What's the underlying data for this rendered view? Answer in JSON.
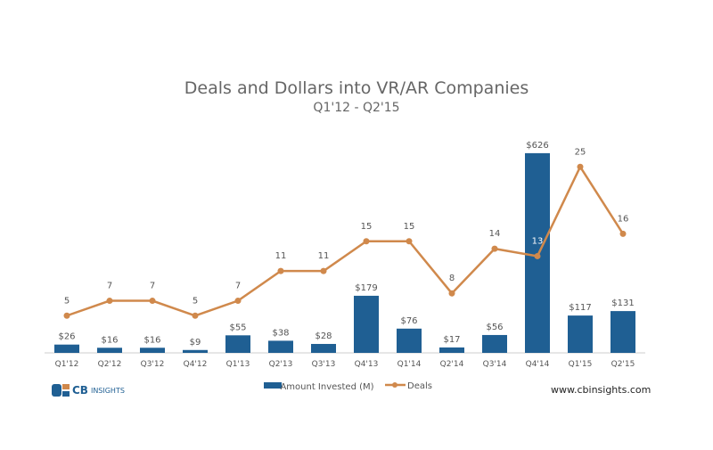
{
  "chart_data": {
    "type": "bar+line",
    "title": "Deals and Dollars into VR/AR Companies",
    "subtitle": "Q1'12 - Q2'15",
    "categories": [
      "Q1'12",
      "Q2'12",
      "Q3'12",
      "Q4'12",
      "Q1'13",
      "Q2'13",
      "Q3'13",
      "Q4'13",
      "Q1'14",
      "Q2'14",
      "Q3'14",
      "Q4'14",
      "Q1'15",
      "Q2'15"
    ],
    "series": [
      {
        "name": "Amount Invested (M)",
        "type": "bar",
        "color": "#1f5f93",
        "values": [
          26,
          16,
          16,
          9,
          55,
          38,
          28,
          179,
          76,
          17,
          56,
          626,
          117,
          131
        ],
        "labels": [
          "$26",
          "$16",
          "$16",
          "$9",
          "$55",
          "$38",
          "$28",
          "$179",
          "$76",
          "$17",
          "$56",
          "$626",
          "$117",
          "$131"
        ]
      },
      {
        "name": "Deals",
        "type": "line",
        "color": "#d0894c",
        "values": [
          5,
          7,
          7,
          5,
          7,
          11,
          11,
          15,
          15,
          8,
          14,
          13,
          25,
          16
        ]
      }
    ],
    "grid": false,
    "legend": "bottom"
  },
  "footer": {
    "logo_text_bold": "CB",
    "logo_text": "INSIGHTS",
    "website": "www.cbinsights.com"
  }
}
